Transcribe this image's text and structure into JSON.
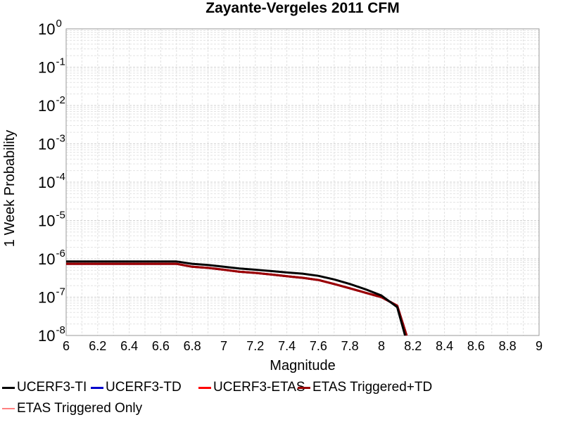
{
  "chart_data": {
    "type": "line",
    "title": "Zayante-Vergeles 2011 CFM",
    "xlabel": "Magnitude",
    "ylabel": "1 Week Probability",
    "xlim": [
      6,
      9
    ],
    "ylim": [
      1e-08,
      1
    ],
    "yscale": "log",
    "grid": true,
    "x_ticks": [
      "6",
      "6.2",
      "6.4",
      "6.6",
      "6.8",
      "7",
      "7.2",
      "7.4",
      "7.6",
      "7.8",
      "8",
      "8.2",
      "8.4",
      "8.6",
      "8.8",
      "9"
    ],
    "y_ticks": [
      {
        "base": "10",
        "exp": "0"
      },
      {
        "base": "10",
        "exp": "-1"
      },
      {
        "base": "10",
        "exp": "-2"
      },
      {
        "base": "10",
        "exp": "-3"
      },
      {
        "base": "10",
        "exp": "-4"
      },
      {
        "base": "10",
        "exp": "-5"
      },
      {
        "base": "10",
        "exp": "-6"
      },
      {
        "base": "10",
        "exp": "-7"
      },
      {
        "base": "10",
        "exp": "-8"
      }
    ],
    "legend_position": "bottom",
    "series": [
      {
        "name": "UCERF3-TI",
        "color": "#000000",
        "x": [
          6.0,
          6.7,
          6.8,
          6.9,
          7.0,
          7.1,
          7.2,
          7.3,
          7.4,
          7.5,
          7.6,
          7.7,
          7.8,
          7.9,
          8.0,
          8.1,
          8.15
        ],
        "y": [
          8.5e-07,
          8.5e-07,
          7.4e-07,
          6.9e-07,
          6.2e-07,
          5.6e-07,
          5.2e-07,
          4.8e-07,
          4.4e-07,
          4.1e-07,
          3.6e-07,
          2.9e-07,
          2.2e-07,
          1.6e-07,
          1.1e-07,
          5.5e-08,
          1e-08
        ]
      },
      {
        "name": "UCERF3-TD",
        "color": "#0000cc",
        "x": [
          6.0,
          6.7,
          6.8,
          6.9,
          7.0,
          7.1,
          7.2,
          7.3,
          7.4,
          7.5,
          7.6,
          7.7,
          7.8,
          7.9,
          8.0,
          8.1,
          8.16
        ],
        "y": [
          7.4e-07,
          7.4e-07,
          6.2e-07,
          5.8e-07,
          5.2e-07,
          4.6e-07,
          4.3e-07,
          3.9e-07,
          3.5e-07,
          3.2e-07,
          2.8e-07,
          2.2e-07,
          1.7e-07,
          1.3e-07,
          1e-07,
          6e-08,
          1e-08
        ]
      },
      {
        "name": "UCERF3-ETAS",
        "color": "#ff0000",
        "x": [
          6.0,
          6.7,
          6.8,
          6.9,
          7.0,
          7.1,
          7.2,
          7.3,
          7.4,
          7.5,
          7.6,
          7.7,
          7.8,
          7.9,
          8.0,
          8.1,
          8.16
        ],
        "y": [
          7.4e-07,
          7.4e-07,
          6.2e-07,
          5.8e-07,
          5.2e-07,
          4.6e-07,
          4.3e-07,
          3.9e-07,
          3.5e-07,
          3.2e-07,
          2.8e-07,
          2.2e-07,
          1.7e-07,
          1.3e-07,
          1e-07,
          6e-08,
          1e-08
        ]
      },
      {
        "name": "ETAS Triggered+TD",
        "color": "#990000",
        "x": [
          6.0,
          6.7,
          6.8,
          6.9,
          7.0,
          7.1,
          7.2,
          7.3,
          7.4,
          7.5,
          7.6,
          7.7,
          7.8,
          7.9,
          8.0,
          8.1,
          8.16
        ],
        "y": [
          7.4e-07,
          7.4e-07,
          6.2e-07,
          5.8e-07,
          5.2e-07,
          4.6e-07,
          4.3e-07,
          3.9e-07,
          3.5e-07,
          3.2e-07,
          2.8e-07,
          2.2e-07,
          1.7e-07,
          1.3e-07,
          1e-07,
          6e-08,
          1e-08
        ]
      },
      {
        "name": "ETAS Triggered Only",
        "color": "#ff8080",
        "x": [],
        "y": []
      }
    ]
  }
}
